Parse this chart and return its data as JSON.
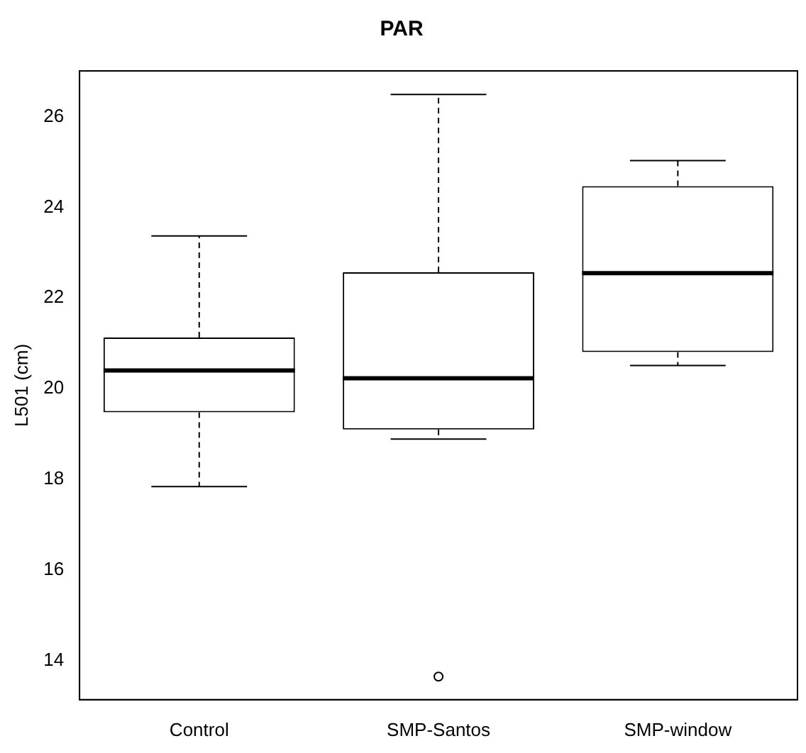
{
  "chart_data": {
    "type": "box",
    "title": "PAR",
    "ylabel": "L501 (cm)",
    "categories": [
      "Control",
      "SMP-Santos",
      "SMP-window"
    ],
    "boxes": [
      {
        "low": 17.84,
        "q1": 19.48,
        "median": 20.4,
        "q3": 21.13,
        "high": 23.37
      },
      {
        "low": 18.89,
        "q1": 19.1,
        "median": 20.23,
        "q3": 22.57,
        "high": 26.49,
        "outliers": [
          13.65
        ]
      },
      {
        "low": 20.51,
        "q1": 20.81,
        "median": 22.55,
        "q3": 24.47,
        "high": 25.03
      }
    ],
    "ylim": [
      13.14,
      27.01
    ],
    "yticks": [
      14,
      16,
      18,
      20,
      22,
      24,
      26
    ],
    "grid": false,
    "legend": false
  }
}
